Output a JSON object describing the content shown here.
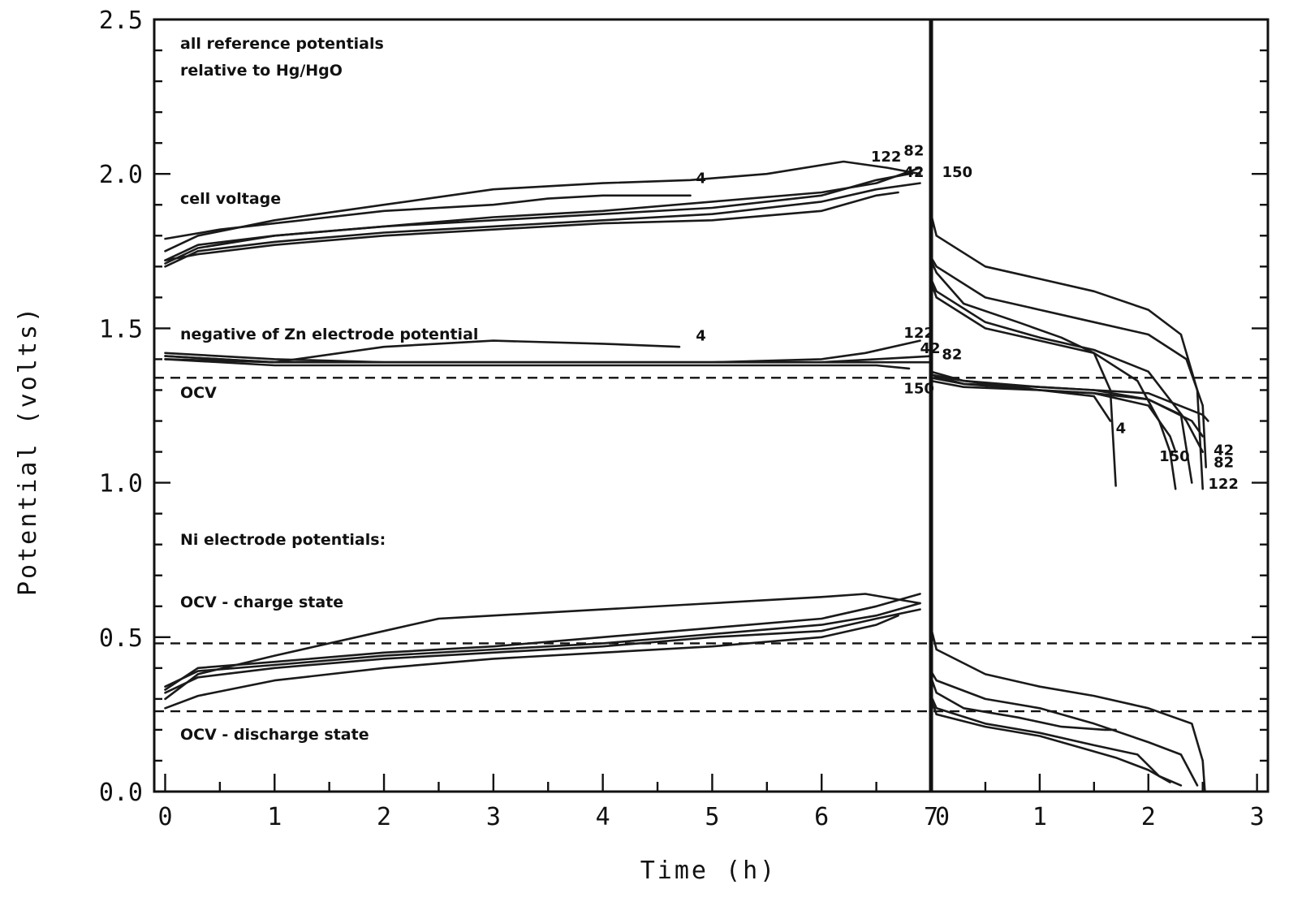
{
  "chart_data": {
    "type": "line",
    "xlabel": "Time (h)",
    "ylabel": "Potential (volts)",
    "ylim": [
      0,
      2.5
    ],
    "yticks": [
      "0.0",
      "0.5",
      "1.0",
      "1.5",
      "2.0",
      "2.5"
    ],
    "panels": [
      {
        "name": "charge",
        "xlim": [
          -0.1,
          7
        ],
        "xticks": [
          "0",
          "1",
          "2",
          "3",
          "4",
          "5",
          "6",
          "7"
        ]
      },
      {
        "name": "discharge",
        "xlim": [
          0,
          3.1
        ],
        "xticks": [
          "0",
          "1",
          "2",
          "3"
        ]
      }
    ],
    "reference_lines": [
      {
        "label": "OCV",
        "y": 1.34
      },
      {
        "label": "OCV - charge state",
        "y": 0.48
      },
      {
        "label": "OCV - discharge state",
        "y": 0.26
      }
    ],
    "annotations": [
      "all reference potentials",
      "relative to Hg/HgO",
      "cell voltage",
      "negative of Zn electrode potential",
      "OCV",
      "Ni electrode potentials:",
      "OCV - charge state",
      "OCV - discharge state"
    ],
    "series": [
      {
        "label": "4",
        "group": "cell voltage",
        "panel": "charge",
        "x": [
          0,
          0.5,
          1,
          2,
          3,
          3.5,
          4,
          4.8
        ],
        "y": [
          1.79,
          1.82,
          1.84,
          1.88,
          1.9,
          1.92,
          1.93,
          1.93
        ]
      },
      {
        "label": "4",
        "group": "cell voltage",
        "panel": "charge",
        "x": [
          0,
          0.3,
          1,
          2,
          3,
          4,
          4.8,
          5.5,
          6.2,
          6.6,
          6.9
        ],
        "y": [
          1.75,
          1.8,
          1.85,
          1.9,
          1.95,
          1.97,
          1.98,
          2.0,
          2.04,
          2.02,
          2.0
        ]
      },
      {
        "label": "122",
        "group": "cell voltage",
        "panel": "charge",
        "x": [
          0,
          0.3,
          1,
          2,
          3,
          4,
          5,
          6,
          6.5,
          6.8
        ],
        "y": [
          1.72,
          1.77,
          1.8,
          1.83,
          1.85,
          1.87,
          1.89,
          1.93,
          1.98,
          2.0
        ]
      },
      {
        "label": "82",
        "group": "cell voltage",
        "panel": "charge",
        "x": [
          0,
          0.3,
          1,
          2,
          3,
          4,
          5,
          6,
          6.5,
          6.9
        ],
        "y": [
          1.71,
          1.76,
          1.8,
          1.83,
          1.86,
          1.88,
          1.91,
          1.94,
          1.97,
          2.02
        ]
      },
      {
        "label": "42",
        "group": "cell voltage",
        "panel": "charge",
        "x": [
          0,
          0.3,
          1,
          2,
          3,
          4,
          5,
          6,
          6.5,
          6.9
        ],
        "y": [
          1.7,
          1.75,
          1.78,
          1.81,
          1.83,
          1.85,
          1.87,
          1.91,
          1.95,
          1.97
        ]
      },
      {
        "label": "150",
        "group": "cell voltage",
        "panel": "charge",
        "x": [
          0,
          0.3,
          1,
          2,
          3,
          4,
          5,
          6,
          6.5,
          6.7
        ],
        "y": [
          1.72,
          1.74,
          1.77,
          1.8,
          1.82,
          1.84,
          1.85,
          1.88,
          1.93,
          1.94
        ]
      },
      {
        "label": "4",
        "group": "Zn electrode",
        "panel": "charge",
        "x": [
          0,
          1,
          2,
          3,
          4,
          4.7
        ],
        "y": [
          1.4,
          1.39,
          1.44,
          1.46,
          1.45,
          1.44
        ]
      },
      {
        "label": "122",
        "group": "Zn electrode",
        "panel": "charge",
        "x": [
          0,
          1,
          2,
          3,
          4,
          5,
          6,
          6.4,
          6.9
        ],
        "y": [
          1.41,
          1.39,
          1.39,
          1.39,
          1.39,
          1.39,
          1.4,
          1.42,
          1.46
        ]
      },
      {
        "label": "42",
        "group": "Zn electrode",
        "panel": "charge",
        "x": [
          0,
          1,
          2,
          3,
          4,
          5,
          6,
          6.5,
          7
        ],
        "y": [
          1.41,
          1.39,
          1.39,
          1.39,
          1.39,
          1.39,
          1.39,
          1.4,
          1.41
        ]
      },
      {
        "label": "82",
        "group": "Zn electrode",
        "panel": "charge",
        "x": [
          0,
          1,
          2,
          3,
          4,
          5,
          6,
          6.5,
          7
        ],
        "y": [
          1.42,
          1.4,
          1.39,
          1.39,
          1.39,
          1.39,
          1.39,
          1.39,
          1.39
        ]
      },
      {
        "label": "150",
        "group": "Zn electrode",
        "panel": "charge",
        "x": [
          0,
          1,
          2,
          3,
          4,
          5,
          6,
          6.5,
          6.8
        ],
        "y": [
          1.4,
          1.38,
          1.38,
          1.38,
          1.38,
          1.38,
          1.38,
          1.38,
          1.37
        ]
      },
      {
        "label": "4",
        "group": "Ni electrode",
        "panel": "charge",
        "x": [
          0,
          0.3,
          1,
          2,
          2.5,
          3,
          4,
          5,
          6,
          6.4,
          6.9
        ],
        "y": [
          0.3,
          0.38,
          0.44,
          0.52,
          0.56,
          0.57,
          0.59,
          0.61,
          0.63,
          0.64,
          0.61
        ]
      },
      {
        "label": "122",
        "group": "Ni electrode",
        "panel": "charge",
        "x": [
          0,
          0.3,
          1,
          2,
          3,
          4,
          5,
          6,
          6.5,
          6.9
        ],
        "y": [
          0.33,
          0.4,
          0.42,
          0.45,
          0.47,
          0.5,
          0.53,
          0.56,
          0.6,
          0.64
        ]
      },
      {
        "label": "82",
        "group": "Ni electrode",
        "panel": "charge",
        "x": [
          0,
          0.3,
          1,
          2,
          3,
          4,
          5,
          6,
          6.5,
          6.9
        ],
        "y": [
          0.34,
          0.39,
          0.41,
          0.44,
          0.46,
          0.48,
          0.51,
          0.54,
          0.57,
          0.61
        ]
      },
      {
        "label": "42",
        "group": "Ni electrode",
        "panel": "charge",
        "x": [
          0,
          0.3,
          1,
          2,
          3,
          4,
          5,
          6,
          6.5,
          6.9
        ],
        "y": [
          0.32,
          0.37,
          0.4,
          0.43,
          0.45,
          0.47,
          0.5,
          0.52,
          0.56,
          0.59
        ]
      },
      {
        "label": "150",
        "group": "Ni electrode",
        "panel": "charge",
        "x": [
          0,
          0.3,
          1,
          2,
          3,
          4,
          5,
          6,
          6.5,
          6.7
        ],
        "y": [
          0.27,
          0.31,
          0.36,
          0.4,
          0.43,
          0.45,
          0.47,
          0.5,
          0.54,
          0.57
        ]
      },
      {
        "label": "4",
        "group": "cell voltage",
        "panel": "discharge",
        "x": [
          0,
          0.05,
          0.3,
          0.8,
          1.2,
          1.5,
          1.65,
          1.7
        ],
        "y": [
          1.72,
          1.68,
          1.58,
          1.52,
          1.47,
          1.42,
          1.3,
          0.99
        ]
      },
      {
        "label": "122",
        "group": "cell voltage",
        "panel": "discharge",
        "x": [
          0,
          0.05,
          0.5,
          1,
          1.5,
          2,
          2.3,
          2.45,
          2.5
        ],
        "y": [
          1.87,
          1.8,
          1.7,
          1.66,
          1.62,
          1.56,
          1.48,
          1.3,
          0.98
        ]
      },
      {
        "label": "82",
        "group": "cell voltage",
        "panel": "discharge",
        "x": [
          0,
          0.05,
          0.5,
          1,
          1.5,
          2,
          2.35,
          2.5,
          2.53
        ],
        "y": [
          1.73,
          1.7,
          1.6,
          1.56,
          1.52,
          1.48,
          1.4,
          1.25,
          1.05
        ]
      },
      {
        "label": "42",
        "group": "cell voltage",
        "panel": "discharge",
        "x": [
          0,
          0.05,
          0.5,
          1,
          1.5,
          2,
          2.35,
          2.5
        ],
        "y": [
          1.66,
          1.62,
          1.52,
          1.47,
          1.43,
          1.36,
          1.2,
          1.1
        ]
      },
      {
        "label": "150",
        "group": "cell voltage",
        "panel": "discharge",
        "x": [
          0,
          0.05,
          0.5,
          1,
          1.5,
          1.9,
          2.1,
          2.2,
          2.25
        ],
        "y": [
          1.65,
          1.6,
          1.5,
          1.46,
          1.42,
          1.33,
          1.2,
          1.1,
          0.98
        ]
      },
      {
        "label": "4",
        "group": "Zn electrode",
        "panel": "discharge",
        "x": [
          0,
          0.3,
          1,
          1.5,
          1.65
        ],
        "y": [
          1.36,
          1.33,
          1.3,
          1.28,
          1.2
        ]
      },
      {
        "label": "122",
        "group": "Zn electrode",
        "panel": "discharge",
        "x": [
          0,
          0.3,
          1,
          1.5,
          2,
          2.3,
          2.4
        ],
        "y": [
          1.35,
          1.32,
          1.31,
          1.3,
          1.27,
          1.22,
          1.0
        ]
      },
      {
        "label": "82",
        "group": "Zn electrode",
        "panel": "discharge",
        "x": [
          0,
          0.3,
          1,
          1.5,
          2,
          2.5,
          2.55
        ],
        "y": [
          1.35,
          1.33,
          1.31,
          1.3,
          1.29,
          1.22,
          1.2
        ]
      },
      {
        "label": "42",
        "group": "Zn electrode",
        "panel": "discharge",
        "x": [
          0,
          0.3,
          1,
          1.5,
          2,
          2.4,
          2.5
        ],
        "y": [
          1.34,
          1.32,
          1.3,
          1.29,
          1.27,
          1.2,
          1.15
        ]
      },
      {
        "label": "150",
        "group": "Zn electrode",
        "panel": "discharge",
        "x": [
          0,
          0.3,
          1,
          1.5,
          2,
          2.2,
          2.25
        ],
        "y": [
          1.33,
          1.31,
          1.3,
          1.29,
          1.25,
          1.15,
          1.1
        ]
      },
      {
        "label": "4",
        "group": "Ni electrode",
        "panel": "discharge",
        "x": [
          0,
          0.05,
          0.3,
          0.8,
          1.2,
          1.6,
          1.7
        ],
        "y": [
          0.37,
          0.32,
          0.27,
          0.24,
          0.21,
          0.2,
          0.2
        ]
      },
      {
        "label": "122",
        "group": "Ni electrode",
        "panel": "discharge",
        "x": [
          0,
          0.05,
          0.5,
          1,
          1.5,
          2,
          2.4,
          2.5,
          2.52
        ],
        "y": [
          0.53,
          0.46,
          0.38,
          0.34,
          0.31,
          0.27,
          0.22,
          0.1,
          0.0
        ]
      },
      {
        "label": "82",
        "group": "Ni electrode",
        "panel": "discharge",
        "x": [
          0,
          0.05,
          0.5,
          1,
          1.5,
          2,
          2.3,
          2.45
        ],
        "y": [
          0.39,
          0.36,
          0.3,
          0.27,
          0.22,
          0.16,
          0.12,
          0.02
        ]
      },
      {
        "label": "42",
        "group": "Ni electrode",
        "panel": "discharge",
        "x": [
          0,
          0.05,
          0.5,
          1,
          1.5,
          1.9,
          2.1,
          2.3
        ],
        "y": [
          0.31,
          0.27,
          0.22,
          0.19,
          0.15,
          0.12,
          0.05,
          0.02
        ]
      },
      {
        "label": "150",
        "group": "Ni electrode",
        "panel": "discharge",
        "x": [
          0,
          0.05,
          0.5,
          1,
          1.4,
          1.7,
          2.0,
          2.2
        ],
        "y": [
          0.3,
          0.25,
          0.21,
          0.18,
          0.14,
          0.11,
          0.07,
          0.03
        ]
      }
    ],
    "curve_labels": [
      {
        "text": "4",
        "panel": "charge",
        "x": 4.85,
        "y": 1.97
      },
      {
        "text": "122",
        "panel": "charge",
        "x": 6.45,
        "y": 2.04
      },
      {
        "text": "82",
        "panel": "charge",
        "x": 6.75,
        "y": 2.06
      },
      {
        "text": "42",
        "panel": "charge",
        "x": 6.75,
        "y": 1.99
      },
      {
        "text": "150",
        "panel": "charge",
        "x": 7.1,
        "y": 1.99
      },
      {
        "text": "4",
        "panel": "charge",
        "x": 4.85,
        "y": 1.46
      },
      {
        "text": "122",
        "panel": "charge",
        "x": 6.75,
        "y": 1.47
      },
      {
        "text": "42",
        "panel": "charge",
        "x": 6.9,
        "y": 1.42
      },
      {
        "text": "82",
        "panel": "discharge",
        "x": 0.1,
        "y": 1.4
      },
      {
        "text": "150",
        "panel": "charge",
        "x": 6.75,
        "y": 1.29
      },
      {
        "text": "4",
        "panel": "discharge",
        "x": 1.7,
        "y": 1.16
      },
      {
        "text": "150",
        "panel": "discharge",
        "x": 2.1,
        "y": 1.07
      },
      {
        "text": "42",
        "panel": "discharge",
        "x": 2.6,
        "y": 1.09
      },
      {
        "text": "82",
        "panel": "discharge",
        "x": 2.6,
        "y": 1.05
      },
      {
        "text": "122",
        "panel": "discharge",
        "x": 2.55,
        "y": 0.98
      }
    ]
  }
}
